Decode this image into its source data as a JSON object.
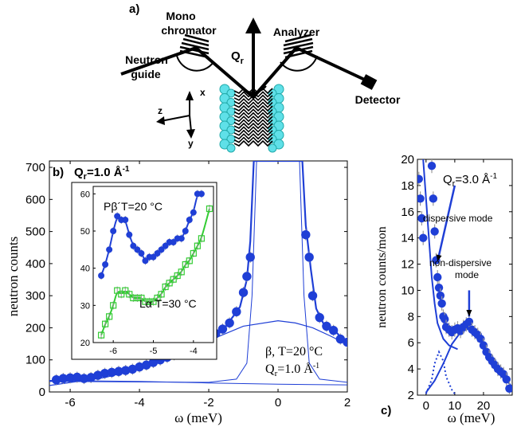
{
  "colors": {
    "blue": "#1f3fd6",
    "green": "#33cc33",
    "cyan": "#5fe0e8",
    "gray": "#999999"
  },
  "panel_a": {
    "label": "a)",
    "mono_label_1": "Mono",
    "mono_label_2": "chromator",
    "analyzer_label": "Analyzer",
    "guide_label_1": "Neutron",
    "guide_label_2": "guide",
    "detector_label": "Detector",
    "q_label": "Q",
    "q_sub": "r",
    "axis_x": "x",
    "axis_y": "y",
    "axis_z": "z"
  },
  "chart_data": [
    {
      "type": "scatter",
      "panel_label": "b)",
      "q_label": "Q",
      "q_sub": "r",
      "q_value": "=1.0 Å",
      "q_exp": "-1",
      "xlabel": "ω (meV)",
      "ylabel": "neutron counts",
      "xlim": [
        -6.6,
        2.0
      ],
      "ylim": [
        0,
        720
      ],
      "xticks": [
        "-6",
        "-4",
        "-2",
        "0",
        "2"
      ],
      "xtick_values": [
        -6,
        -4,
        -2,
        0,
        2
      ],
      "yticks": [
        "0",
        "100",
        "200",
        "300",
        "400",
        "500",
        "600",
        "700"
      ],
      "ytick_values": [
        0,
        100,
        200,
        300,
        400,
        500,
        600,
        700
      ],
      "annotation_1": "β, T=20 °C",
      "annotation_2_q": "Q",
      "annotation_2_sub": "r",
      "annotation_2_val": "=1.0 Å",
      "annotation_2_exp": "-1",
      "series": [
        {
          "x": [
            -6.4,
            -6.2,
            -6.0,
            -5.8,
            -5.6,
            -5.4,
            -5.2,
            -5.0,
            -4.8,
            -4.6,
            -4.4,
            -4.2,
            -4.0,
            -3.8,
            -3.6,
            -3.4,
            -3.2,
            -3.0,
            -2.8,
            -2.6,
            -2.4,
            -2.2,
            -2.0,
            -1.8,
            -1.6,
            -1.4,
            -1.2,
            -1.0,
            -0.9,
            -0.8,
            0.8,
            0.9,
            1.0,
            1.2,
            1.4,
            1.6,
            1.8,
            2.0
          ],
          "y": [
            38,
            42,
            44,
            46,
            42,
            45,
            52,
            58,
            61,
            64,
            67,
            71,
            78,
            84,
            92,
            100,
            108,
            116,
            125,
            136,
            146,
            158,
            170,
            182,
            196,
            215,
            250,
            310,
            360,
            420,
            490,
            420,
            300,
            232,
            205,
            192,
            165,
            155
          ]
        }
      ],
      "fit_total": [
        [
          -6.6,
          34
        ],
        [
          -5,
          52
        ],
        [
          -4,
          72
        ],
        [
          -3,
          112
        ],
        [
          -2,
          168
        ],
        [
          -1.5,
          205
        ],
        [
          -1.1,
          265
        ],
        [
          -0.9,
          350
        ],
        [
          -0.8,
          470
        ],
        [
          -0.7,
          720
        ],
        [
          0.7,
          720
        ],
        [
          0.8,
          520
        ],
        [
          0.95,
          380
        ],
        [
          1.1,
          260
        ],
        [
          1.3,
          215
        ],
        [
          1.6,
          195
        ],
        [
          2.0,
          150
        ]
      ],
      "fit_broad": [
        [
          -6.6,
          20
        ],
        [
          -5,
          45
        ],
        [
          -4,
          72
        ],
        [
          -3,
          110
        ],
        [
          -2,
          160
        ],
        [
          -1,
          205
        ],
        [
          0,
          222
        ],
        [
          0.5,
          215
        ],
        [
          1,
          200
        ],
        [
          1.5,
          175
        ],
        [
          2,
          148
        ]
      ],
      "fit_elastic": [
        [
          -6.6,
          33
        ],
        [
          -2,
          30
        ],
        [
          -1.2,
          40
        ],
        [
          -0.9,
          90
        ],
        [
          -0.75,
          300
        ],
        [
          -0.62,
          720
        ],
        [
          0.62,
          720
        ],
        [
          0.75,
          300
        ],
        [
          0.9,
          90
        ],
        [
          1.2,
          40
        ],
        [
          2,
          30
        ]
      ],
      "fit_baseline": [
        [
          -6.6,
          36
        ],
        [
          -4,
          33
        ],
        [
          -2,
          28
        ],
        [
          0,
          24
        ],
        [
          2,
          22
        ]
      ]
    },
    {
      "type": "scatter",
      "inset": true,
      "xlim": [
        -6.5,
        -3.5
      ],
      "ylim": [
        20,
        62
      ],
      "xticks": [
        "-6",
        "-5",
        "-4"
      ],
      "xtick_values": [
        -6,
        -5,
        -4
      ],
      "yticks": [
        "20",
        "30",
        "40",
        "50",
        "60"
      ],
      "ytick_values": [
        20,
        30,
        40,
        50,
        60
      ],
      "label_blue": "Pβ´T=20 °C",
      "label_green": "Lα T=30 °C",
      "series": [
        {
          "marker": "circle",
          "x": [
            -6.3,
            -6.2,
            -6.1,
            -6.0,
            -5.9,
            -5.8,
            -5.7,
            -5.6,
            -5.5,
            -5.4,
            -5.3,
            -5.2,
            -5.1,
            -5.0,
            -4.9,
            -4.8,
            -4.7,
            -4.6,
            -4.5,
            -4.4,
            -4.3,
            -4.2,
            -4.1,
            -4.0,
            -3.9,
            -3.8
          ],
          "y": [
            38,
            41,
            45,
            50,
            54,
            53,
            53,
            49,
            46,
            45,
            44,
            42,
            43,
            43,
            44,
            45,
            46,
            47,
            47,
            48,
            48,
            50,
            53,
            55,
            60,
            60
          ]
        },
        {
          "marker": "square",
          "x": [
            -6.3,
            -6.2,
            -6.1,
            -6.0,
            -5.9,
            -5.8,
            -5.7,
            -5.6,
            -5.5,
            -5.4,
            -5.3,
            -5.2,
            -5.1,
            -5.0,
            -4.9,
            -4.8,
            -4.7,
            -4.6,
            -4.5,
            -4.4,
            -4.3,
            -4.2,
            -4.1,
            -4.0,
            -3.9,
            -3.8,
            -3.6
          ],
          "y": [
            22,
            25,
            27,
            30,
            34,
            33,
            34,
            33,
            32,
            32,
            32,
            31,
            31,
            31,
            32,
            33,
            35,
            36,
            37,
            38,
            39,
            41,
            42,
            44,
            46,
            48,
            56
          ]
        }
      ]
    },
    {
      "type": "scatter",
      "panel_label": "c)",
      "q_label": "Q",
      "q_sub": "r",
      "q_value": "=3.0 Å",
      "q_exp": "-1",
      "xlabel": "ω (meV)",
      "ylabel": "neutron counts/mon",
      "xlim": [
        -3,
        30
      ],
      "ylim": [
        2,
        20
      ],
      "xticks": [
        "0",
        "10",
        "20"
      ],
      "xtick_values": [
        0,
        10,
        20
      ],
      "yticks": [
        "2",
        "4",
        "6",
        "8",
        "10",
        "12",
        "14",
        "16",
        "18",
        "20"
      ],
      "ytick_values": [
        2,
        4,
        6,
        8,
        10,
        12,
        14,
        16,
        18,
        20
      ],
      "annotation_dispersive": "dispersive mode",
      "annotation_nondisp_1": "non-dispersive",
      "annotation_nondisp_2": "mode",
      "series": [
        {
          "x": [
            -2.5,
            -2,
            -1.5,
            -1,
            2,
            2.5,
            3,
            3.5,
            4,
            4.5,
            5,
            5.5,
            6,
            6.5,
            7,
            8,
            9,
            10,
            11,
            12,
            13,
            14,
            15,
            16,
            17,
            18,
            19,
            20,
            21,
            22,
            23,
            24,
            25,
            26,
            27,
            28,
            29
          ],
          "y": [
            18.5,
            17,
            15.5,
            14,
            19.5,
            17,
            14.5,
            12.3,
            11,
            10.2,
            9.6,
            9.0,
            8.0,
            7.8,
            7.2,
            7.0,
            6.8,
            7.0,
            7.1,
            6.9,
            7.2,
            7.4,
            7.6,
            7.0,
            6.8,
            6.6,
            6.3,
            5.8,
            5.3,
            4.9,
            4.6,
            4.3,
            4.0,
            3.8,
            3.6,
            3.2,
            2.5
          ]
        }
      ],
      "fit_elastic": [
        [
          -3,
          25
        ],
        [
          -1,
          20
        ],
        [
          0,
          17
        ],
        [
          1,
          14
        ],
        [
          2,
          11
        ],
        [
          3,
          9
        ],
        [
          4,
          7.5
        ],
        [
          6,
          6.3
        ],
        [
          8,
          5.8
        ],
        [
          11,
          5.5
        ]
      ],
      "fit_dispersive": [
        [
          0,
          2.1
        ],
        [
          2,
          3.2
        ],
        [
          3,
          4.4
        ],
        [
          4.5,
          5.3
        ],
        [
          6,
          4.6
        ],
        [
          7,
          3.4
        ],
        [
          9,
          2.4
        ],
        [
          10,
          2.1
        ]
      ],
      "fit_nondisp": [
        [
          0,
          2.2
        ],
        [
          3,
          3.1
        ],
        [
          6,
          4.4
        ],
        [
          9,
          5.9
        ],
        [
          12,
          6.8
        ],
        [
          15,
          7.1
        ],
        [
          18,
          6.6
        ],
        [
          22,
          5.0
        ],
        [
          26,
          3.7
        ],
        [
          30,
          2.6
        ]
      ],
      "arrow_disp_tip": [
        4,
        12.2
      ],
      "arrow_disp_tail": [
        10,
        18
      ],
      "arrow_nondisp_tip": [
        15,
        8.0
      ],
      "arrow_nondisp_tail": [
        15,
        10.0
      ]
    }
  ]
}
